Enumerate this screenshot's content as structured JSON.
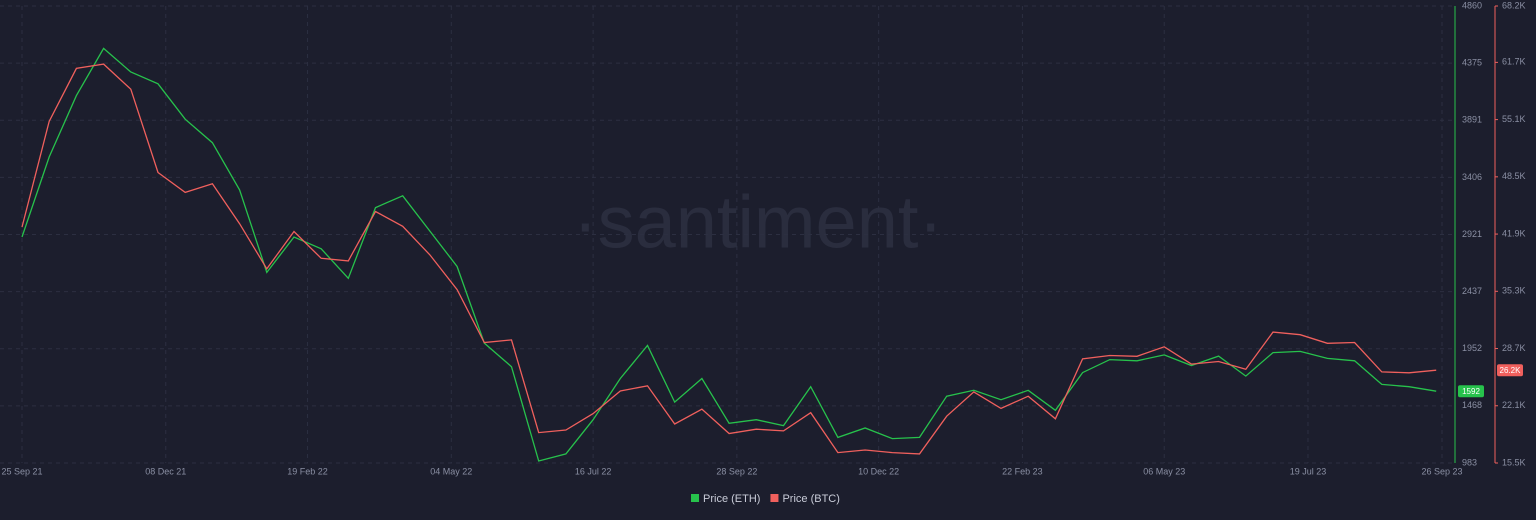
{
  "chart_data": {
    "type": "line",
    "watermark": "·santiment·",
    "grid": true,
    "background": "#1c1e2d",
    "x": [
      "2021-09-25",
      "2021-10-09",
      "2021-10-23",
      "2021-11-06",
      "2021-11-20",
      "2021-12-04",
      "2021-12-18",
      "2022-01-01",
      "2022-01-15",
      "2022-01-29",
      "2022-02-12",
      "2022-02-26",
      "2022-03-12",
      "2022-03-26",
      "2022-04-09",
      "2022-04-23",
      "2022-05-07",
      "2022-05-21",
      "2022-06-04",
      "2022-06-18",
      "2022-07-02",
      "2022-07-16",
      "2022-07-30",
      "2022-08-13",
      "2022-08-27",
      "2022-09-10",
      "2022-09-24",
      "2022-10-08",
      "2022-10-22",
      "2022-11-05",
      "2022-11-19",
      "2022-12-03",
      "2022-12-17",
      "2022-12-31",
      "2023-01-14",
      "2023-01-28",
      "2023-02-11",
      "2023-02-25",
      "2023-03-11",
      "2023-03-25",
      "2023-04-08",
      "2023-04-22",
      "2023-05-06",
      "2023-05-20",
      "2023-06-03",
      "2023-06-17",
      "2023-07-01",
      "2023-07-15",
      "2023-07-29",
      "2023-08-12",
      "2023-08-26",
      "2023-09-09",
      "2023-09-23"
    ],
    "xlim": [
      "2021-09-25",
      "2023-09-26"
    ],
    "xticks": [
      {
        "value": "2021-09-25",
        "label": "25 Sep 21"
      },
      {
        "value": "2021-12-08",
        "label": "08 Dec 21"
      },
      {
        "value": "2022-02-19",
        "label": "19 Feb 22"
      },
      {
        "value": "2022-05-04",
        "label": "04 May 22"
      },
      {
        "value": "2022-07-16",
        "label": "16 Jul 22"
      },
      {
        "value": "2022-09-28",
        "label": "28 Sep 22"
      },
      {
        "value": "2022-12-10",
        "label": "10 Dec 22"
      },
      {
        "value": "2023-02-22",
        "label": "22 Feb 23"
      },
      {
        "value": "2023-05-06",
        "label": "06 May 23"
      },
      {
        "value": "2023-07-19",
        "label": "19 Jul 23"
      },
      {
        "value": "2023-09-26",
        "label": "26 Sep 23"
      }
    ],
    "ylim": [
      983,
      4860
    ],
    "yticks": [
      983,
      1468,
      1952,
      2437,
      2921,
      3406,
      3891,
      4375,
      4860
    ],
    "y2lim": [
      15500,
      68200
    ],
    "y2ticks": [
      {
        "value": 15500,
        "label": "15.5K"
      },
      {
        "value": 22100,
        "label": "22.1K"
      },
      {
        "value": 28700,
        "label": "28.7K"
      },
      {
        "value": 35300,
        "label": "35.3K"
      },
      {
        "value": 41900,
        "label": "41.9K"
      },
      {
        "value": 48500,
        "label": "48.5K"
      },
      {
        "value": 55100,
        "label": "55.1K"
      },
      {
        "value": 61700,
        "label": "61.7K"
      },
      {
        "value": 68200,
        "label": "68.2K"
      }
    ],
    "series": [
      {
        "name": "Price (ETH)",
        "color": "#27c24c",
        "axis": "y",
        "last": 1592,
        "values": [
          2900,
          3580,
          4100,
          4500,
          4300,
          4200,
          3900,
          3700,
          3300,
          2600,
          2900,
          2800,
          2550,
          3150,
          3250,
          2950,
          2650,
          2000,
          1800,
          1000,
          1060,
          1350,
          1700,
          1980,
          1500,
          1700,
          1320,
          1350,
          1300,
          1630,
          1200,
          1280,
          1190,
          1200,
          1550,
          1600,
          1520,
          1600,
          1430,
          1750,
          1860,
          1850,
          1900,
          1810,
          1890,
          1720,
          1920,
          1930,
          1870,
          1850,
          1650,
          1630,
          1592
        ]
      },
      {
        "name": "Price (BTC)",
        "color": "#f0605d",
        "axis": "y2",
        "last": {
          "value": 26200,
          "label": "26.2K"
        },
        "values": [
          42700,
          54900,
          61000,
          61500,
          58600,
          49000,
          46700,
          47700,
          43100,
          37900,
          42200,
          39100,
          38800,
          44500,
          42800,
          39500,
          35500,
          29400,
          29700,
          19000,
          19300,
          21200,
          23800,
          24400,
          20000,
          21700,
          18900,
          19400,
          19200,
          21300,
          16700,
          17000,
          16700,
          16550,
          20900,
          23700,
          21800,
          23200,
          20600,
          27500,
          27900,
          27800,
          28900,
          26900,
          27200,
          26300,
          30600,
          30300,
          29300,
          29400,
          26000,
          25900,
          26200
        ]
      }
    ]
  }
}
